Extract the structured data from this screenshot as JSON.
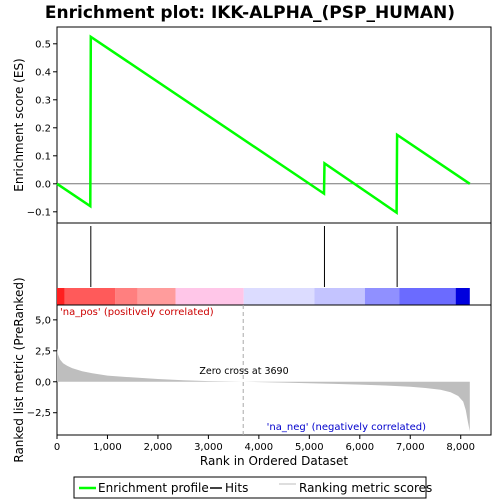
{
  "chart_data": {
    "type": "line",
    "title": "Enrichment plot: IKK-ALPHA_(PSP_HUMAN)",
    "xlabel": "Rank in Ordered Dataset",
    "xlim": [
      0,
      8600
    ],
    "x_ticks": [
      "0",
      "1,000",
      "2,000",
      "3,000",
      "4,000",
      "5,000",
      "6,000",
      "7,000",
      "8,000"
    ],
    "es_panel": {
      "ylabel": "Enrichment score (ES)",
      "ylim": [
        -0.14,
        0.56
      ],
      "y_ticks": [
        "−0.1",
        "0.0",
        "0.1",
        "0.2",
        "0.3",
        "0.4",
        "0.5"
      ],
      "series": [
        {
          "name": "Enrichment profile",
          "color": "#00ff00",
          "x": [
            0,
            660,
            670,
            5290,
            5300,
            6730,
            6740,
            8180
          ],
          "y": [
            0.0,
            -0.08,
            0.525,
            -0.035,
            0.073,
            -0.103,
            0.175,
            0.0
          ]
        }
      ]
    },
    "hits": [
      670,
      5300,
      6740
    ],
    "color_bar": {
      "max_rank": 8180,
      "segments": [
        {
          "from": 0,
          "to": 150,
          "color": "#ff2020"
        },
        {
          "from": 150,
          "to": 1150,
          "color": "#ff5a5a"
        },
        {
          "from": 1150,
          "to": 1600,
          "color": "#ff7f7f"
        },
        {
          "from": 1600,
          "to": 2350,
          "color": "#ff9c9c"
        },
        {
          "from": 2350,
          "to": 3700,
          "color": "#ffc6e8"
        },
        {
          "from": 3700,
          "to": 5100,
          "color": "#dcdcff"
        },
        {
          "from": 5100,
          "to": 6100,
          "color": "#c4c4ff"
        },
        {
          "from": 6100,
          "to": 6780,
          "color": "#9090ff"
        },
        {
          "from": 6780,
          "to": 7900,
          "color": "#6b6bff"
        },
        {
          "from": 7900,
          "to": 8180,
          "color": "#0000dd"
        }
      ]
    },
    "metric_panel": {
      "ylabel": "Ranked list metric (PreRanked)",
      "ylim": [
        -4.3,
        6.2
      ],
      "y_ticks": [
        "−2,5",
        "0,0",
        "2,5",
        "5,0"
      ],
      "fill_color": "#bebebe",
      "x": [
        0,
        20,
        60,
        120,
        200,
        300,
        500,
        700,
        1000,
        1500,
        2000,
        2500,
        3000,
        3690,
        4500,
        5000,
        5500,
        6000,
        6500,
        7000,
        7300,
        7600,
        7800,
        7950,
        8050,
        8100,
        8140,
        8180
      ],
      "y": [
        2.7,
        2.2,
        1.8,
        1.5,
        1.3,
        1.1,
        0.85,
        0.68,
        0.5,
        0.35,
        0.22,
        0.12,
        0.05,
        0.0,
        -0.07,
        -0.12,
        -0.17,
        -0.23,
        -0.3,
        -0.4,
        -0.5,
        -0.65,
        -0.85,
        -1.15,
        -1.6,
        -2.3,
        -3.2,
        -4.0
      ]
    },
    "annotations": {
      "pos": "'na_pos' (positively correlated)",
      "neg": "'na_neg' (negatively correlated)",
      "zero_cross": "Zero cross at 3690",
      "zero_cross_rank": 3690
    },
    "legend": {
      "placement": "bottom",
      "items": [
        {
          "label": "Enrichment profile",
          "color": "#00ff00"
        },
        {
          "label": "Hits",
          "color": "#000000"
        },
        {
          "label": "Ranking metric scores",
          "color": "#bebebe"
        }
      ]
    }
  }
}
